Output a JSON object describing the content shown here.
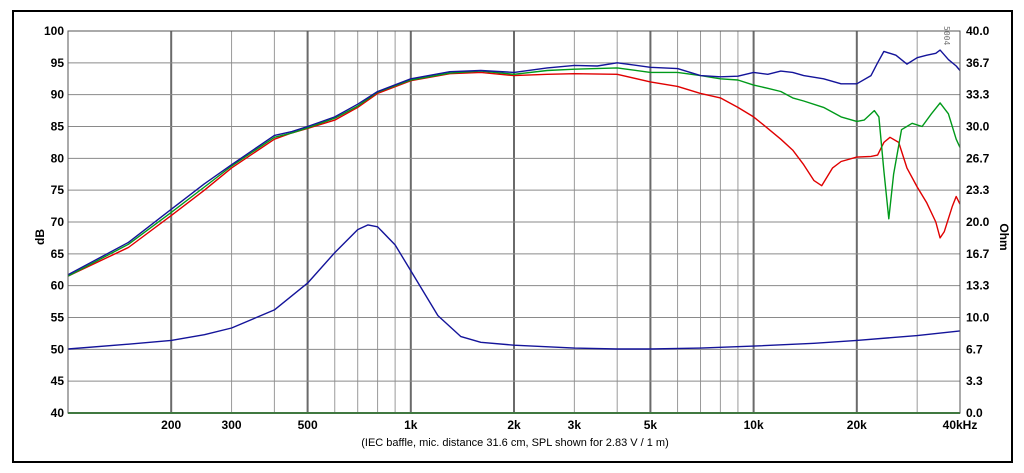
{
  "chart_data": {
    "type": "line",
    "caption": "(IEC baffle, mic. distance 31.6 cm, SPL shown for 2.83 V / 1 m)",
    "xlabel": "",
    "ylabel": "dB",
    "y2label": "Ohm",
    "x_scale": "log",
    "xlim": [
      100,
      40000
    ],
    "ylim": [
      40,
      100
    ],
    "y2lim": [
      0,
      40
    ],
    "grid": true,
    "corner_mark": "5004",
    "x_tick_labels": [
      {
        "x": 200,
        "label": "200"
      },
      {
        "x": 300,
        "label": "300"
      },
      {
        "x": 500,
        "label": "500"
      },
      {
        "x": 1000,
        "label": "1k"
      },
      {
        "x": 2000,
        "label": "2k"
      },
      {
        "x": 3000,
        "label": "3k"
      },
      {
        "x": 5000,
        "label": "5k"
      },
      {
        "x": 10000,
        "label": "10k"
      },
      {
        "x": 20000,
        "label": "20k"
      },
      {
        "x": 40000,
        "label": "40kHz"
      }
    ],
    "y_tick_labels": [
      "40",
      "45",
      "50",
      "55",
      "60",
      "65",
      "70",
      "75",
      "80",
      "85",
      "90",
      "95",
      "100"
    ],
    "y2_tick_labels": [
      "0.0",
      "3.3",
      "6.7",
      "10.0",
      "13.3",
      "16.7",
      "20.0",
      "23.3",
      "26.7",
      "30.0",
      "33.3",
      "36.7",
      "40.0"
    ],
    "series": [
      {
        "axis": "left",
        "color": "#e00000",
        "points": [
          [
            100,
            61.5
          ],
          [
            150,
            66
          ],
          [
            200,
            71
          ],
          [
            250,
            75
          ],
          [
            300,
            78.5
          ],
          [
            400,
            83
          ],
          [
            450,
            84
          ],
          [
            500,
            84.7
          ],
          [
            600,
            86
          ],
          [
            700,
            88
          ],
          [
            800,
            90.2
          ],
          [
            1000,
            92.2
          ],
          [
            1300,
            93.3
          ],
          [
            1600,
            93.5
          ],
          [
            2000,
            93
          ],
          [
            2500,
            93.2
          ],
          [
            3000,
            93.3
          ],
          [
            4000,
            93.2
          ],
          [
            5000,
            92
          ],
          [
            6000,
            91.3
          ],
          [
            7000,
            90.2
          ],
          [
            8000,
            89.5
          ],
          [
            9000,
            88
          ],
          [
            10000,
            86.5
          ],
          [
            11000,
            84.7
          ],
          [
            12000,
            83
          ],
          [
            13000,
            81.3
          ],
          [
            14000,
            79
          ],
          [
            15000,
            76.5
          ],
          [
            15800,
            75.7
          ],
          [
            17000,
            78.5
          ],
          [
            18000,
            79.5
          ],
          [
            20000,
            80.2
          ],
          [
            22000,
            80.3
          ],
          [
            23000,
            80.5
          ],
          [
            24000,
            82.5
          ],
          [
            25000,
            83.3
          ],
          [
            26500,
            82.5
          ],
          [
            28000,
            78.5
          ],
          [
            30000,
            75.5
          ],
          [
            32000,
            73
          ],
          [
            34000,
            70
          ],
          [
            35000,
            67.5
          ],
          [
            36000,
            68.5
          ],
          [
            38000,
            72.5
          ],
          [
            39000,
            74
          ],
          [
            40000,
            72.8
          ]
        ]
      },
      {
        "axis": "left",
        "color": "#009a1a",
        "points": [
          [
            100,
            61.5
          ],
          [
            150,
            66.5
          ],
          [
            200,
            71.5
          ],
          [
            250,
            75.5
          ],
          [
            300,
            78.8
          ],
          [
            400,
            83.3
          ],
          [
            450,
            84
          ],
          [
            500,
            84.8
          ],
          [
            600,
            86.3
          ],
          [
            700,
            88.2
          ],
          [
            800,
            90.4
          ],
          [
            1000,
            92.3
          ],
          [
            1300,
            93.4
          ],
          [
            1600,
            93.7
          ],
          [
            2000,
            93.2
          ],
          [
            2500,
            93.8
          ],
          [
            3000,
            94
          ],
          [
            4000,
            94.2
          ],
          [
            5000,
            93.5
          ],
          [
            6000,
            93.5
          ],
          [
            7000,
            93
          ],
          [
            8000,
            92.5
          ],
          [
            9000,
            92.3
          ],
          [
            10000,
            91.5
          ],
          [
            11000,
            91
          ],
          [
            12000,
            90.5
          ],
          [
            13000,
            89.5
          ],
          [
            14000,
            89
          ],
          [
            16000,
            88
          ],
          [
            18000,
            86.5
          ],
          [
            20000,
            85.8
          ],
          [
            21000,
            86
          ],
          [
            22500,
            87.5
          ],
          [
            23200,
            86.5
          ],
          [
            24000,
            78
          ],
          [
            24800,
            70.5
          ],
          [
            25600,
            77.5
          ],
          [
            27000,
            84.5
          ],
          [
            29000,
            85.5
          ],
          [
            31000,
            85
          ],
          [
            33000,
            87
          ],
          [
            35000,
            88.7
          ],
          [
            37000,
            87
          ],
          [
            39000,
            83
          ],
          [
            40000,
            81.7
          ]
        ]
      },
      {
        "axis": "left",
        "color": "#14149a",
        "points": [
          [
            100,
            61.7
          ],
          [
            150,
            66.8
          ],
          [
            200,
            72
          ],
          [
            250,
            76
          ],
          [
            300,
            79
          ],
          [
            400,
            83.6
          ],
          [
            450,
            84.2
          ],
          [
            500,
            85
          ],
          [
            600,
            86.5
          ],
          [
            700,
            88.5
          ],
          [
            800,
            90.5
          ],
          [
            1000,
            92.5
          ],
          [
            1300,
            93.6
          ],
          [
            1600,
            93.8
          ],
          [
            2000,
            93.5
          ],
          [
            2500,
            94.2
          ],
          [
            3000,
            94.6
          ],
          [
            3500,
            94.5
          ],
          [
            4000,
            95
          ],
          [
            5000,
            94.3
          ],
          [
            6000,
            94.1
          ],
          [
            7000,
            93
          ],
          [
            8000,
            92.8
          ],
          [
            9000,
            92.9
          ],
          [
            10000,
            93.5
          ],
          [
            11000,
            93.2
          ],
          [
            12000,
            93.7
          ],
          [
            13000,
            93.5
          ],
          [
            14000,
            93
          ],
          [
            16000,
            92.5
          ],
          [
            18000,
            91.7
          ],
          [
            20000,
            91.7
          ],
          [
            22000,
            93
          ],
          [
            23000,
            95
          ],
          [
            24000,
            96.8
          ],
          [
            26000,
            96.2
          ],
          [
            28000,
            94.8
          ],
          [
            30000,
            95.8
          ],
          [
            32000,
            96.2
          ],
          [
            34000,
            96.5
          ],
          [
            35000,
            97
          ],
          [
            37000,
            95.5
          ],
          [
            39000,
            94.5
          ],
          [
            40000,
            93.8
          ]
        ]
      },
      {
        "axis": "right",
        "color": "#14149a",
        "points": [
          [
            100,
            6.7
          ],
          [
            150,
            7.2
          ],
          [
            200,
            7.6
          ],
          [
            250,
            8.2
          ],
          [
            300,
            8.9
          ],
          [
            400,
            10.8
          ],
          [
            500,
            13.6
          ],
          [
            600,
            16.8
          ],
          [
            700,
            19.2
          ],
          [
            750,
            19.7
          ],
          [
            800,
            19.5
          ],
          [
            900,
            17.6
          ],
          [
            1000,
            14.9
          ],
          [
            1200,
            10.2
          ],
          [
            1400,
            8
          ],
          [
            1600,
            7.4
          ],
          [
            2000,
            7.1
          ],
          [
            3000,
            6.8
          ],
          [
            4000,
            6.7
          ],
          [
            5000,
            6.7
          ],
          [
            7000,
            6.8
          ],
          [
            10000,
            7
          ],
          [
            15000,
            7.3
          ],
          [
            20000,
            7.6
          ],
          [
            30000,
            8.1
          ],
          [
            40000,
            8.6
          ]
        ]
      }
    ]
  }
}
